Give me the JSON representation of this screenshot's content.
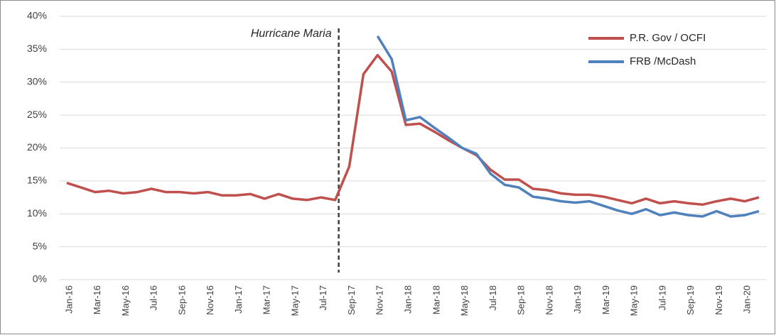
{
  "chart_data": {
    "type": "line",
    "annotation": "Hurricane Maria",
    "categories": [
      "Jan-16",
      null,
      "Mar-16",
      null,
      "May-16",
      null,
      "Jul-16",
      null,
      "Sep-16",
      null,
      "Nov-16",
      null,
      "Jan-17",
      null,
      "Mar-17",
      null,
      "May-17",
      null,
      "Jul-17",
      null,
      "Sep-17",
      null,
      "Nov-17",
      null,
      "Jan-18",
      null,
      "Mar-18",
      null,
      "May-18",
      null,
      "Jul-18",
      null,
      "Sep-18",
      null,
      "Nov-18",
      null,
      "Jan-19",
      null,
      "Mar-19",
      null,
      "May-19",
      null,
      "Jul-19",
      null,
      "Sep-19",
      null,
      "Nov-19",
      null,
      "Jan-20",
      null
    ],
    "series": [
      {
        "name": "P.R. Gov / OCFI",
        "color": "#c0504d",
        "values": [
          14.7,
          14.0,
          13.3,
          13.5,
          13.1,
          13.3,
          13.8,
          13.3,
          13.3,
          13.1,
          13.3,
          12.8,
          12.8,
          13.0,
          12.3,
          13.0,
          12.3,
          12.1,
          12.5,
          12.1,
          17.2,
          31.2,
          34.1,
          31.6,
          23.5,
          23.7,
          22.5,
          21.2,
          20.0,
          18.9,
          16.7,
          15.2,
          15.2,
          13.8,
          13.6,
          13.1,
          12.9,
          12.9,
          12.6,
          12.1,
          11.6,
          12.3,
          11.6,
          11.9,
          11.6,
          11.4,
          11.9,
          12.3,
          11.9,
          12.5
        ]
      },
      {
        "name": "FRB /McDash",
        "color": "#4f81bd",
        "values": [
          null,
          null,
          null,
          null,
          null,
          null,
          null,
          null,
          null,
          null,
          null,
          null,
          null,
          null,
          null,
          null,
          null,
          null,
          null,
          null,
          null,
          null,
          37.0,
          33.5,
          24.2,
          24.7,
          23.1,
          21.6,
          20.0,
          19.1,
          16.1,
          14.4,
          14.0,
          12.6,
          12.3,
          11.9,
          11.7,
          11.9,
          11.2,
          10.5,
          10.0,
          10.7,
          9.8,
          10.2,
          9.8,
          9.6,
          10.4,
          9.6,
          9.8,
          10.4
        ]
      }
    ],
    "ylim": [
      0,
      40
    ],
    "yticks": [
      {
        "value": 0,
        "label": "0%"
      },
      {
        "value": 5,
        "label": "5%"
      },
      {
        "value": 10,
        "label": "10%"
      },
      {
        "value": 15,
        "label": "15%"
      },
      {
        "value": 20,
        "label": "20%"
      },
      {
        "value": 25,
        "label": "25%"
      },
      {
        "value": 30,
        "label": "30%"
      },
      {
        "value": 35,
        "label": "35%"
      },
      {
        "value": 40,
        "label": "40%"
      }
    ],
    "grid": true,
    "legend": "top-right"
  }
}
